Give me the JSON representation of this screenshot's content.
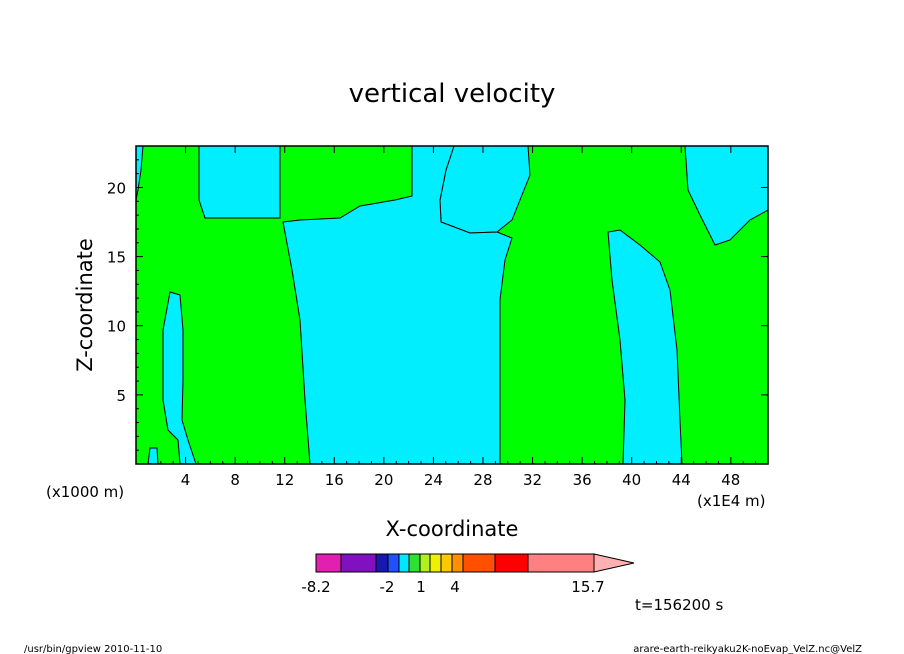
{
  "chart_data": {
    "type": "heatmap",
    "title": "vertical velocity",
    "xlabel": "X-coordinate",
    "ylabel": "Z-coordinate",
    "x_scale_note": "(x1E4 m)",
    "y_scale_note": "(x1000 m)",
    "xlim": [
      0,
      51
    ],
    "ylim": [
      0,
      23
    ],
    "x_ticks": [
      "4",
      "8",
      "12",
      "16",
      "20",
      "24",
      "28",
      "32",
      "36",
      "40",
      "44",
      "48"
    ],
    "y_ticks": [
      "5",
      "10",
      "15",
      "20"
    ],
    "colorbar": {
      "colors": [
        "#e020b0",
        "#8010c0",
        "#1818b0",
        "#2050ff",
        "#00e8ff",
        "#30e030",
        "#b0f020",
        "#f0f000",
        "#ffc800",
        "#ff9000",
        "#ff5000",
        "#ff0000",
        "#ff8080",
        "#ffb0b0"
      ],
      "labels": [
        "-8.2",
        "-2",
        "1",
        "4",
        "15.7"
      ]
    },
    "regions_legend": {
      "positive": "#00ff00",
      "negative": "#00eeff"
    },
    "time_label": "t=156200 s"
  },
  "footer": {
    "left": "/usr/bin/gpview  2010-11-10",
    "right": "arare-earth-reikyaku2K-noEvap_VelZ.nc@VelZ"
  }
}
